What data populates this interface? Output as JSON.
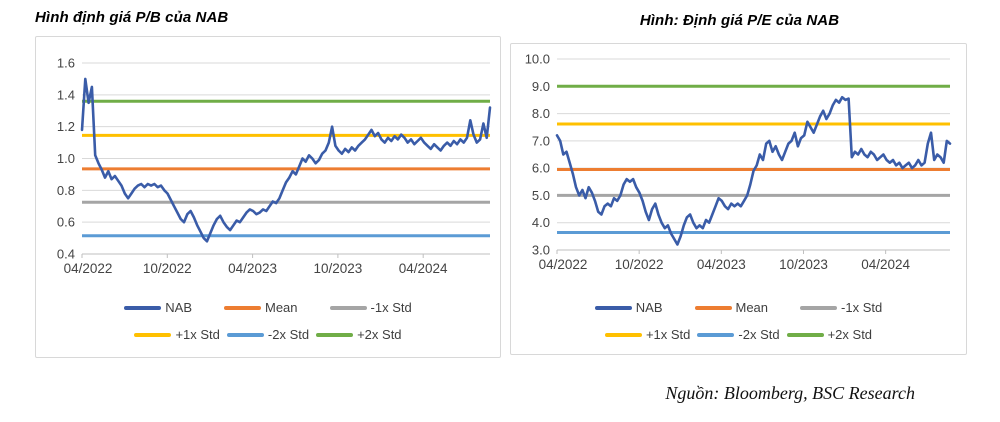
{
  "page": {
    "source_note": "Nguồn: Bloomberg, BSC Research"
  },
  "colors": {
    "nab_line": "#3A5CA8",
    "mean": "#ED7D31",
    "minus1std": "#A5A5A5",
    "plus1std": "#FFC000",
    "minus2std": "#5B9BD5",
    "plus2std": "#70AD47",
    "gridline": "#D9D9D9",
    "axis": "#BFBFBF",
    "tick_text": "#444444"
  },
  "chart_data": [
    {
      "id": "pb-valuation",
      "type": "line",
      "title": "Hình định giá P/B của NAB",
      "x_axis": {
        "start": "04/2022",
        "frequency": "weekly",
        "tick_labels": [
          "04/2022",
          "10/2022",
          "04/2023",
          "10/2023",
          "04/2024"
        ],
        "tick_months": [
          0,
          6,
          12,
          18,
          24
        ],
        "span_months": 28.7
      },
      "y_axis": {
        "min": 0.4,
        "max": 1.6,
        "step": 0.2,
        "decimals": 1
      },
      "grid": true,
      "legend_position": "bottom",
      "legend_rows": [
        [
          "NAB",
          "Mean",
          "-1x Std"
        ],
        [
          "+1x Std",
          "-2x Std",
          "+2x Std"
        ]
      ],
      "hlines": [
        {
          "name": "+2x Std",
          "value": 1.36,
          "color": "#70AD47"
        },
        {
          "name": "+1x Std",
          "value": 1.145,
          "color": "#FFC000"
        },
        {
          "name": "Mean",
          "value": 0.935,
          "color": "#ED7D31"
        },
        {
          "name": "-1x Std",
          "value": 0.725,
          "color": "#A5A5A5"
        },
        {
          "name": "-2x Std",
          "value": 0.515,
          "color": "#5B9BD5"
        }
      ],
      "series": [
        {
          "name": "NAB",
          "color": "#3A5CA8",
          "values": [
            1.18,
            1.5,
            1.35,
            1.45,
            1.02,
            0.97,
            0.93,
            0.88,
            0.92,
            0.87,
            0.89,
            0.86,
            0.83,
            0.78,
            0.75,
            0.78,
            0.81,
            0.83,
            0.84,
            0.82,
            0.84,
            0.83,
            0.84,
            0.82,
            0.83,
            0.8,
            0.78,
            0.74,
            0.7,
            0.66,
            0.62,
            0.6,
            0.65,
            0.67,
            0.63,
            0.58,
            0.54,
            0.5,
            0.48,
            0.53,
            0.58,
            0.62,
            0.64,
            0.6,
            0.57,
            0.55,
            0.58,
            0.61,
            0.6,
            0.63,
            0.66,
            0.68,
            0.67,
            0.65,
            0.66,
            0.68,
            0.67,
            0.7,
            0.73,
            0.72,
            0.75,
            0.8,
            0.85,
            0.88,
            0.92,
            0.9,
            0.95,
            1.0,
            0.98,
            1.02,
            1.0,
            0.97,
            0.99,
            1.03,
            1.05,
            1.1,
            1.2,
            1.08,
            1.05,
            1.03,
            1.06,
            1.04,
            1.07,
            1.05,
            1.08,
            1.1,
            1.12,
            1.15,
            1.18,
            1.14,
            1.16,
            1.12,
            1.1,
            1.13,
            1.11,
            1.14,
            1.12,
            1.15,
            1.13,
            1.1,
            1.12,
            1.09,
            1.11,
            1.13,
            1.1,
            1.08,
            1.06,
            1.09,
            1.07,
            1.05,
            1.08,
            1.1,
            1.08,
            1.11,
            1.09,
            1.12,
            1.1,
            1.13,
            1.24,
            1.15,
            1.1,
            1.12,
            1.22,
            1.13,
            1.32
          ]
        }
      ]
    },
    {
      "id": "pe-valuation",
      "type": "line",
      "title": "Hình: Định giá P/E của NAB",
      "x_axis": {
        "start": "04/2022",
        "frequency": "weekly",
        "tick_labels": [
          "04/2022",
          "10/2022",
          "04/2023",
          "10/2023",
          "04/2024"
        ],
        "tick_months": [
          0,
          6,
          12,
          18,
          24
        ],
        "span_months": 28.7
      },
      "y_axis": {
        "min": 3.0,
        "max": 10.0,
        "step": 1.0,
        "decimals": 1
      },
      "grid": true,
      "legend_position": "bottom",
      "legend_rows": [
        [
          "NAB",
          "Mean",
          "-1x Std"
        ],
        [
          "+1x Std",
          "-2x Std",
          "+2x Std"
        ]
      ],
      "hlines": [
        {
          "name": "+2x Std",
          "value": 9.0,
          "color": "#70AD47"
        },
        {
          "name": "+1x Std",
          "value": 7.62,
          "color": "#FFC000"
        },
        {
          "name": "Mean",
          "value": 5.95,
          "color": "#ED7D31"
        },
        {
          "name": "-1x Std",
          "value": 5.0,
          "color": "#A5A5A5"
        },
        {
          "name": "-2x Std",
          "value": 3.64,
          "color": "#5B9BD5"
        }
      ],
      "series": [
        {
          "name": "NAB",
          "color": "#3A5CA8",
          "values": [
            7.2,
            7.0,
            6.5,
            6.6,
            6.2,
            5.8,
            5.3,
            5.0,
            5.2,
            4.9,
            5.3,
            5.1,
            4.8,
            4.4,
            4.3,
            4.6,
            4.7,
            4.6,
            4.9,
            4.8,
            5.0,
            5.4,
            5.6,
            5.5,
            5.6,
            5.3,
            5.1,
            4.8,
            4.4,
            4.1,
            4.5,
            4.7,
            4.3,
            4.0,
            3.8,
            3.9,
            3.6,
            3.4,
            3.2,
            3.5,
            3.9,
            4.2,
            4.3,
            4.0,
            3.8,
            3.9,
            3.8,
            4.1,
            4.0,
            4.3,
            4.6,
            4.9,
            4.8,
            4.6,
            4.5,
            4.7,
            4.6,
            4.7,
            4.6,
            4.8,
            5.0,
            5.4,
            5.9,
            6.1,
            6.5,
            6.3,
            6.9,
            7.0,
            6.6,
            6.8,
            6.5,
            6.3,
            6.6,
            6.9,
            7.0,
            7.3,
            6.8,
            7.1,
            7.2,
            7.7,
            7.5,
            7.3,
            7.6,
            7.9,
            8.1,
            7.8,
            8.0,
            8.3,
            8.5,
            8.4,
            8.6,
            8.5,
            8.55,
            6.4,
            6.6,
            6.5,
            6.7,
            6.5,
            6.4,
            6.6,
            6.5,
            6.3,
            6.4,
            6.5,
            6.3,
            6.2,
            6.3,
            6.1,
            6.2,
            6.0,
            6.1,
            6.2,
            6.0,
            6.1,
            6.3,
            6.1,
            6.2,
            6.9,
            7.3,
            6.3,
            6.5,
            6.4,
            6.2,
            7.0,
            6.9
          ]
        }
      ]
    }
  ]
}
